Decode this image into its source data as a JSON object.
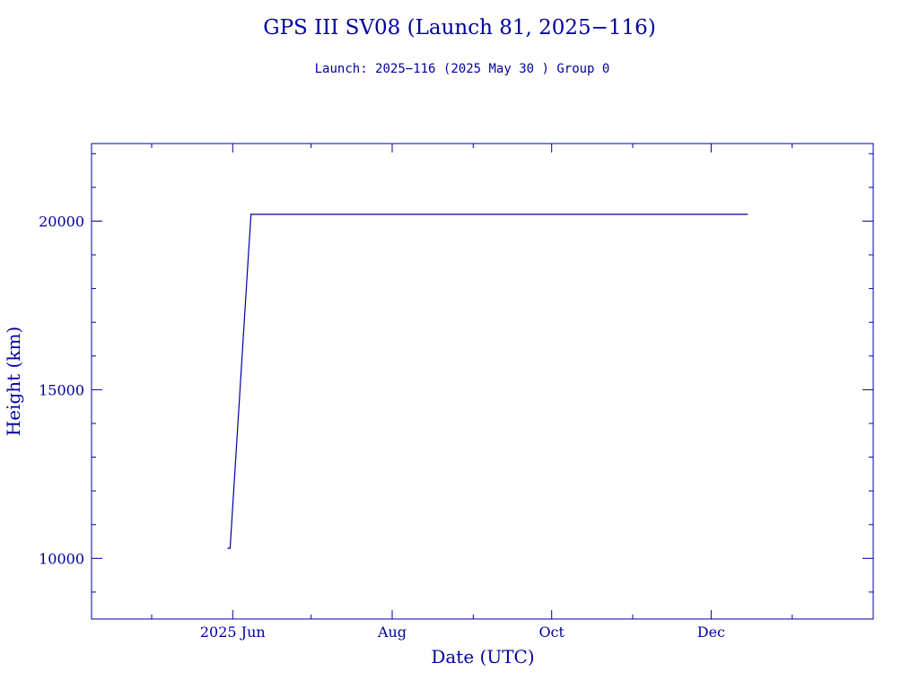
{
  "chart_data": {
    "type": "line",
    "title": "GPS III SV08 (Launch 81, 2025−116)",
    "subtitle": "Launch: 2025−116  (2025 May 30 )  Group 0",
    "xlabel": "Date (UTC)",
    "ylabel": "Height (km)",
    "x_type": "date",
    "xlim": [
      "2025-04-08",
      "2026-02-01"
    ],
    "ylim": [
      8200,
      22300
    ],
    "x_ticks": [
      {
        "date": "2025-06-01",
        "label": "2025 Jun"
      },
      {
        "date": "2025-08-01",
        "label": "Aug"
      },
      {
        "date": "2025-10-01",
        "label": "Oct"
      },
      {
        "date": "2025-12-01",
        "label": "Dec"
      }
    ],
    "x_minor_ticks": [
      "2025-05-01",
      "2025-07-01",
      "2025-09-01",
      "2025-11-01",
      "2026-01-01"
    ],
    "y_ticks": [
      10000,
      15000,
      20000
    ],
    "y_minor_step": 1000,
    "grid": false,
    "line_color": "#0000a0",
    "series": [
      {
        "x": [
          "2025-05-30",
          "2025-05-31",
          "2025-06-03",
          "2025-06-07",
          "2025-06-08",
          "2025-12-15"
        ],
        "y": [
          10300,
          10300,
          14000,
          19000,
          20200,
          20200
        ]
      }
    ]
  }
}
